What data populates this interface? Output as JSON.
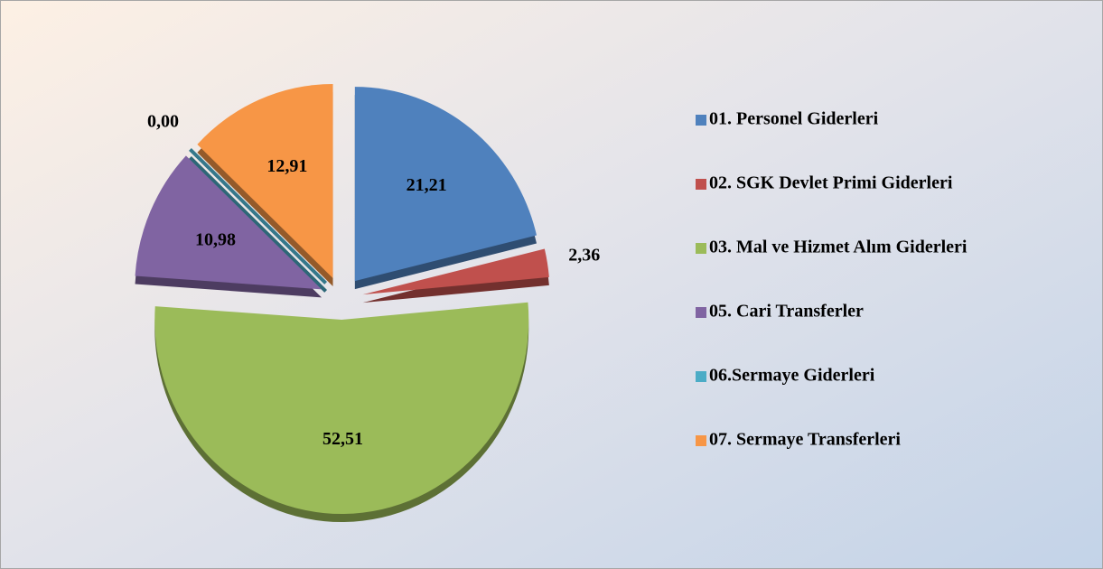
{
  "chart_data": {
    "type": "pie",
    "categories": [
      "01. Personel Giderleri",
      "02. SGK Devlet Primi Giderleri",
      "03. Mal ve Hizmet Alım Giderleri",
      "05. Cari Transferler",
      "06.Sermaye Giderleri",
      "07. Sermaye Transferleri"
    ],
    "values": [
      21.21,
      2.36,
      52.51,
      10.98,
      0.0,
      12.91
    ],
    "value_labels": [
      "21,21",
      "2,36",
      "52,51",
      "10,98",
      "0,00",
      "12,91"
    ],
    "colors": [
      "#4f81bd",
      "#c0504d",
      "#9bbb59",
      "#8064a2",
      "#4bacc6",
      "#f79646"
    ],
    "legend": "right"
  }
}
